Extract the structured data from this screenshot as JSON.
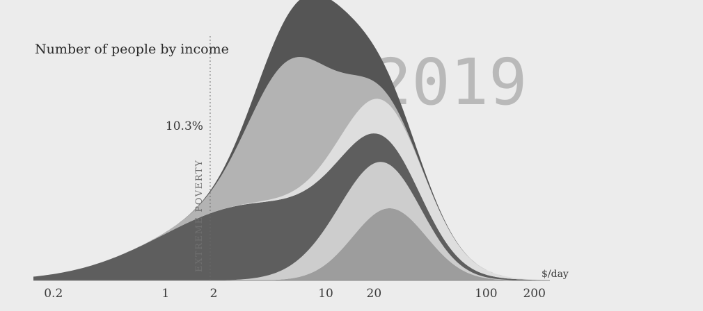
{
  "chart_data": {
    "type": "area",
    "title": "Number of people by income",
    "year": "2019",
    "xlabel": "$/day",
    "x_scale": "log",
    "xlim": [
      0.15,
      250
    ],
    "tick_labels": [
      "0.2",
      "1",
      "2",
      "10",
      "20",
      "100",
      "200"
    ],
    "tick_values": [
      0.2,
      1,
      2,
      10,
      20,
      100,
      200
    ],
    "poverty_line": {
      "x": 1.9,
      "label": "EXTREME POVERTY",
      "share_label": "10.3%"
    },
    "stacking_order": [
      "top",
      "second",
      "third",
      "fourth",
      "fifth",
      "bottom"
    ],
    "series": [
      {
        "color": "#9d9d9d",
        "peak_x": 25,
        "sigma": 0.23,
        "peak_value": 0.26
      },
      {
        "color": "#cdcdcd",
        "peak_x": 17,
        "sigma": 0.27,
        "peak_value": 0.19
      },
      {
        "color": "#5e5e5e",
        "peak_x": 3.5,
        "sigma": 0.56,
        "peak_value": 0.27
      },
      {
        "color": "#dedede",
        "peak_x": 25,
        "sigma": 0.3,
        "peak_value": 0.13
      },
      {
        "color": "#b3b3b3",
        "peak_x": 6,
        "sigma": 0.26,
        "peak_value": 0.48
      },
      {
        "color": "#555555",
        "peak_x": 10,
        "sigma": 0.26,
        "peak_value": 0.25
      }
    ],
    "grid": false,
    "legend": "none"
  }
}
